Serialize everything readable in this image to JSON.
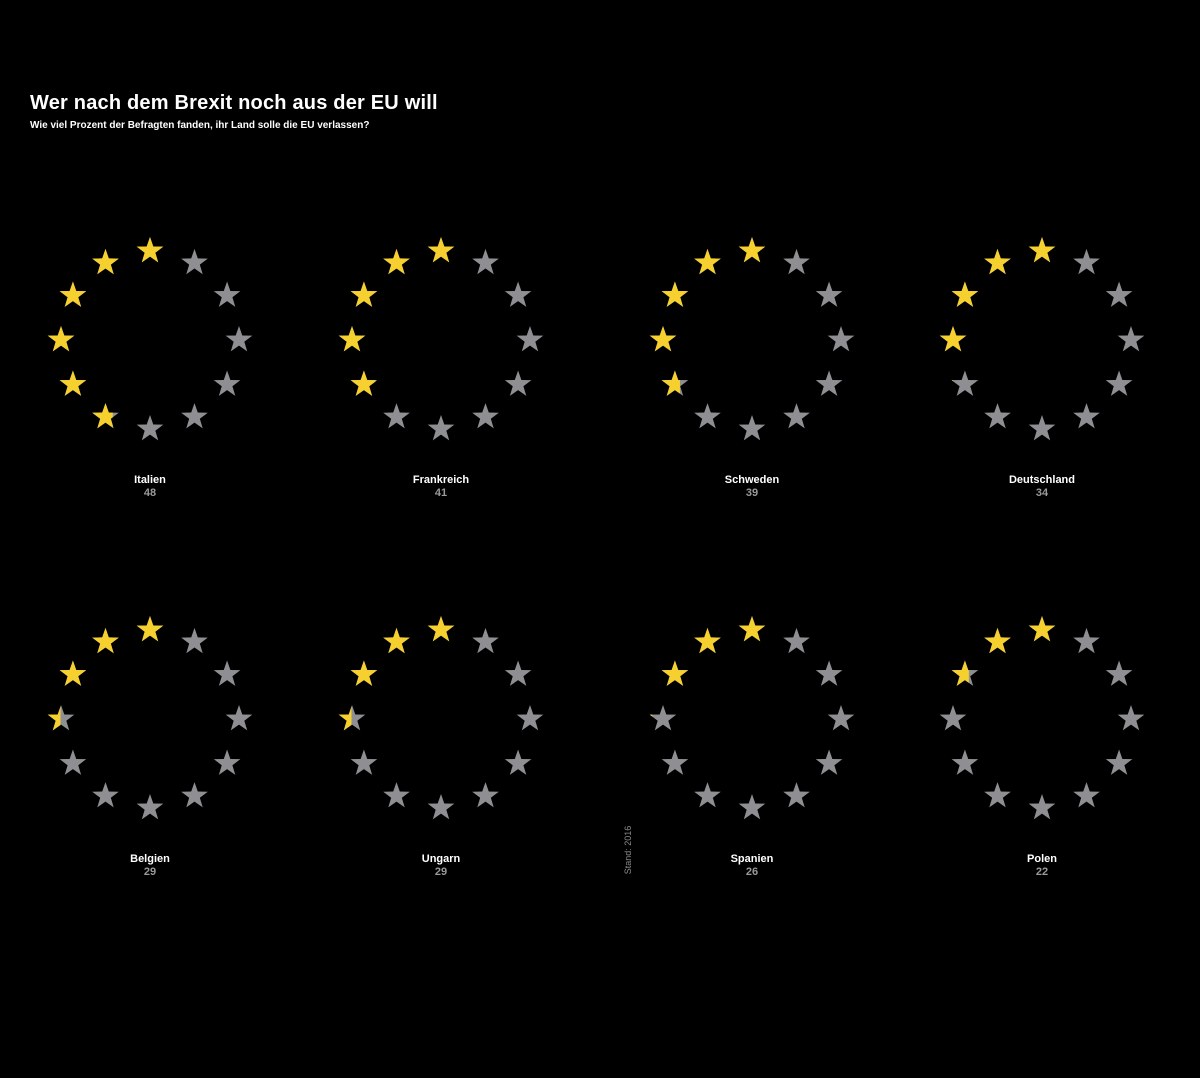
{
  "colors": {
    "background": "#000000",
    "yes": "#f6d02f",
    "no": "#8e8e93",
    "label": "#ffffff",
    "value": "#9a9a9a"
  },
  "stars_per_circle": 12,
  "source_note": "Stand: 2016",
  "chart_data": {
    "type": "pictorial-ring",
    "title": "Wer nach dem Brexit noch aus der EU will",
    "subtitle": "Wie viel Prozent der Befragten fanden, ihr Land solle die EU verlassen?",
    "unit": "percent",
    "categories": [
      "Italien",
      "Frankreich",
      "Schweden",
      "Deutschland",
      "Belgien",
      "Ungarn",
      "Spanien",
      "Polen"
    ],
    "values": [
      48,
      41,
      39,
      34,
      29,
      29,
      26,
      22
    ]
  }
}
